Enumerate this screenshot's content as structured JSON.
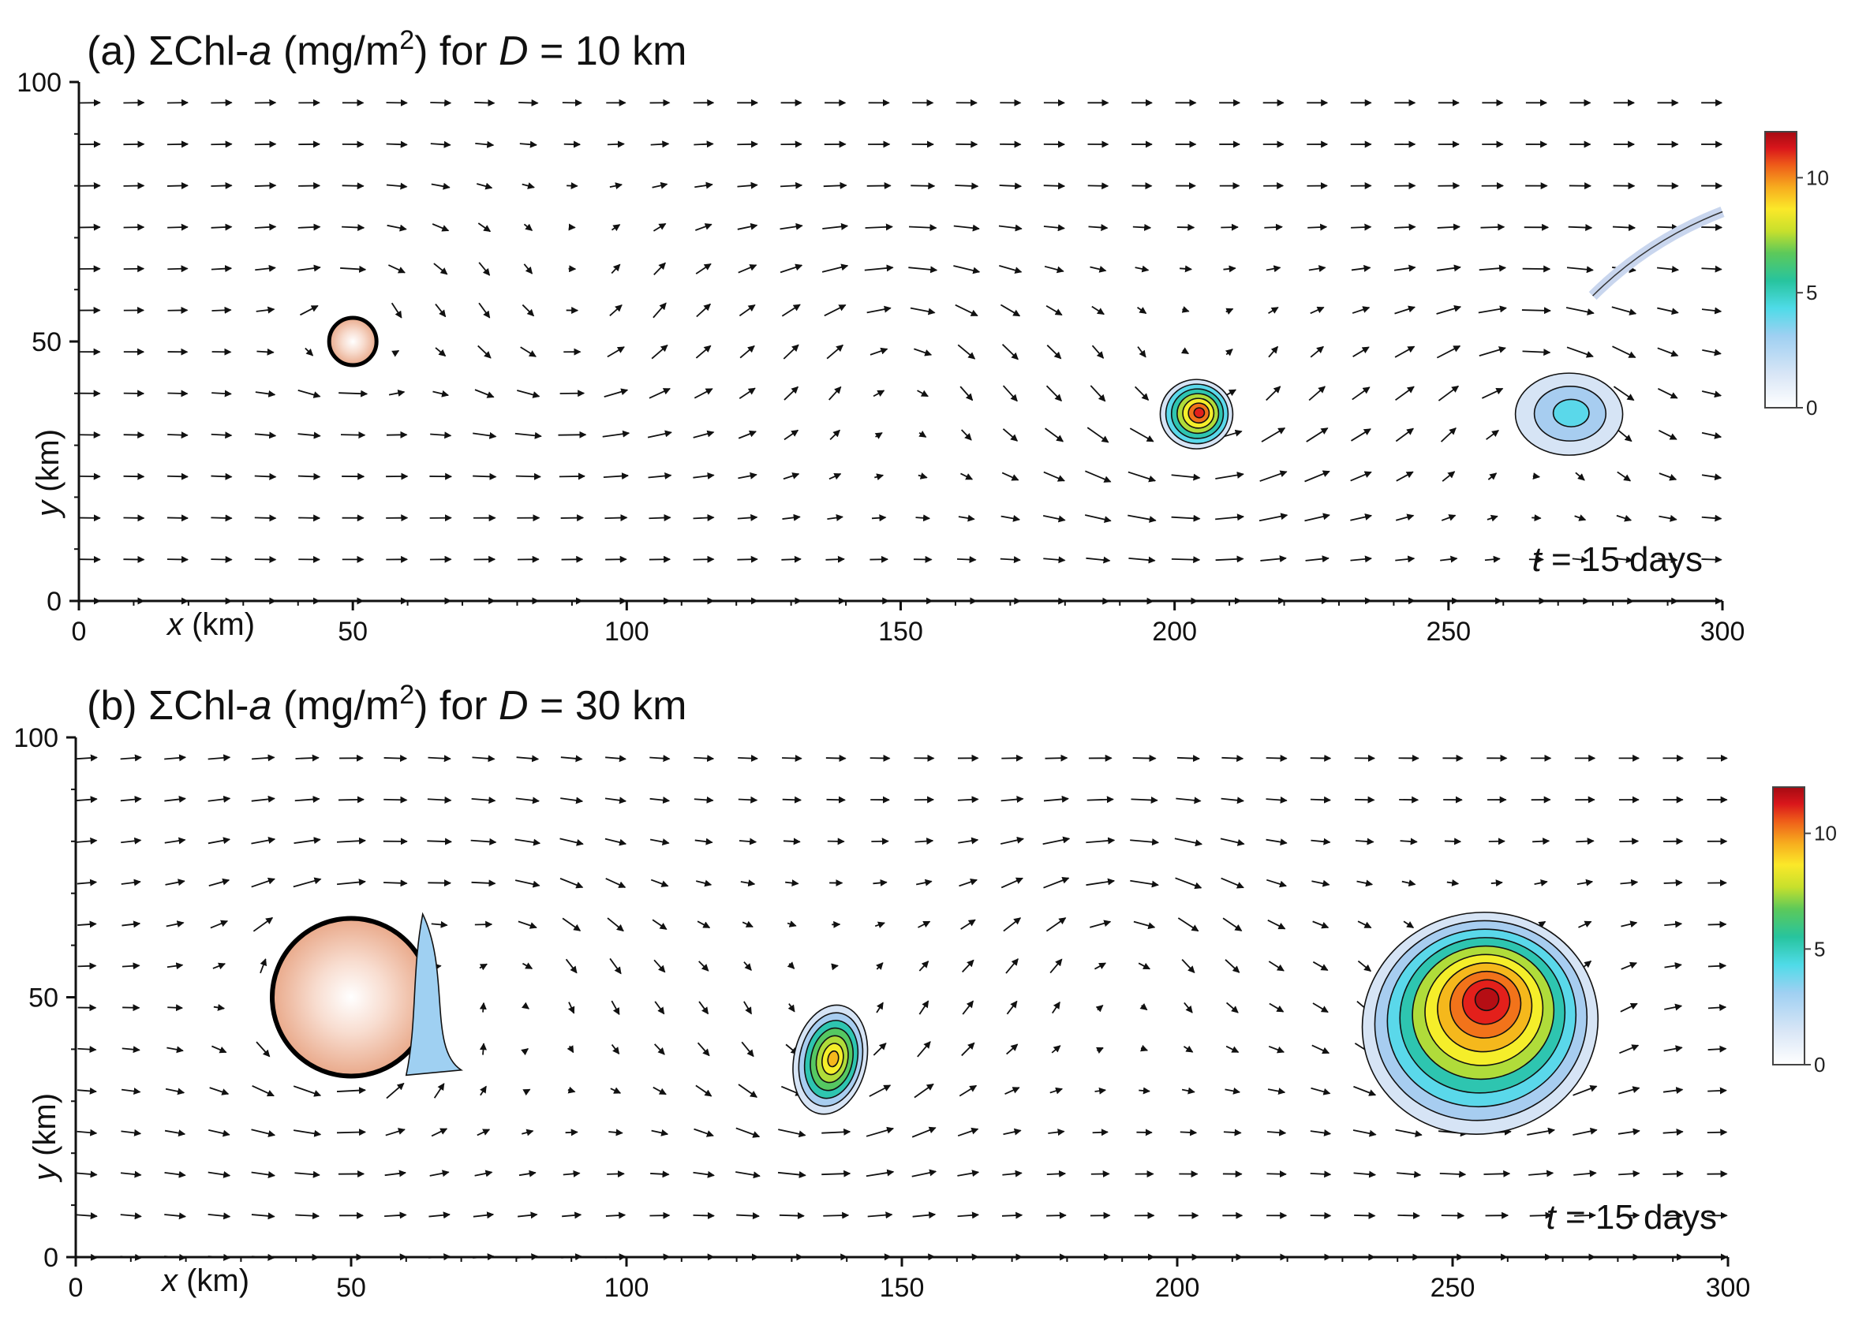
{
  "chart_data": [
    {
      "type": "vector-field-contour",
      "panel": "(a)",
      "title": {
        "prefix": "(a) ΣChl-",
        "italic": "a",
        "units_open": " (mg/m",
        "sup": "2",
        "units_close": ") for ",
        "var": "D",
        "rest": " = 10 km"
      },
      "xlabel": {
        "var": "x",
        "unit": " (km)"
      },
      "ylabel": {
        "var": "y",
        "unit": " (km)"
      },
      "xlim": [
        0,
        300
      ],
      "ylim": [
        0,
        100
      ],
      "xticks": [
        "0",
        "50",
        "100",
        "150",
        "200",
        "250",
        "300"
      ],
      "yticks": [
        "0",
        "50",
        "100"
      ],
      "time_label": {
        "var": "t",
        "rest": " = 15 days"
      },
      "island": {
        "cx": 50,
        "cy": 50,
        "diameter_km": 10
      },
      "eddies": [
        {
          "cx": 204,
          "cy": 36,
          "peak": 11,
          "note": "small concentrated patch"
        },
        {
          "cx": 272,
          "cy": 36,
          "peak": 3,
          "note": "hook-shaped low patch with filament to (300, 75)"
        }
      ],
      "colorbar": {
        "min": 0,
        "max": 12,
        "ticks": [
          "0",
          "5",
          "10"
        ]
      }
    },
    {
      "type": "vector-field-contour",
      "panel": "(b)",
      "title": {
        "prefix": "(b) ΣChl-",
        "italic": "a",
        "units_open": " (mg/m",
        "sup": "2",
        "units_close": ") for ",
        "var": "D",
        "rest": " = 30 km"
      },
      "xlabel": {
        "var": "x",
        "unit": " (km)"
      },
      "ylabel": {
        "var": "y",
        "unit": " (km)"
      },
      "xlim": [
        0,
        300
      ],
      "ylim": [
        0,
        100
      ],
      "xticks": [
        "0",
        "50",
        "100",
        "150",
        "200",
        "250",
        "300"
      ],
      "yticks": [
        "0",
        "50",
        "100"
      ],
      "time_label": {
        "var": "t",
        "rest": " = 15 days"
      },
      "island": {
        "cx": 50,
        "cy": 50,
        "diameter_km": 30
      },
      "eddies": [
        {
          "cx": 137,
          "cy": 38,
          "peak": 9,
          "note": "teardrop patch"
        },
        {
          "cx": 255,
          "cy": 45,
          "peak": 12,
          "note": "large spiral eddy"
        }
      ],
      "colorbar": {
        "min": 0,
        "max": 12,
        "ticks": [
          "0",
          "5",
          "10"
        ]
      }
    }
  ],
  "colormap": [
    "#ffffff",
    "#d6e4f5",
    "#a7cdf0",
    "#5ad8ea",
    "#2ec5b0",
    "#55c862",
    "#b0dc3a",
    "#f5ee2a",
    "#f5b81c",
    "#f2731a",
    "#e3201b",
    "#b50e14"
  ]
}
